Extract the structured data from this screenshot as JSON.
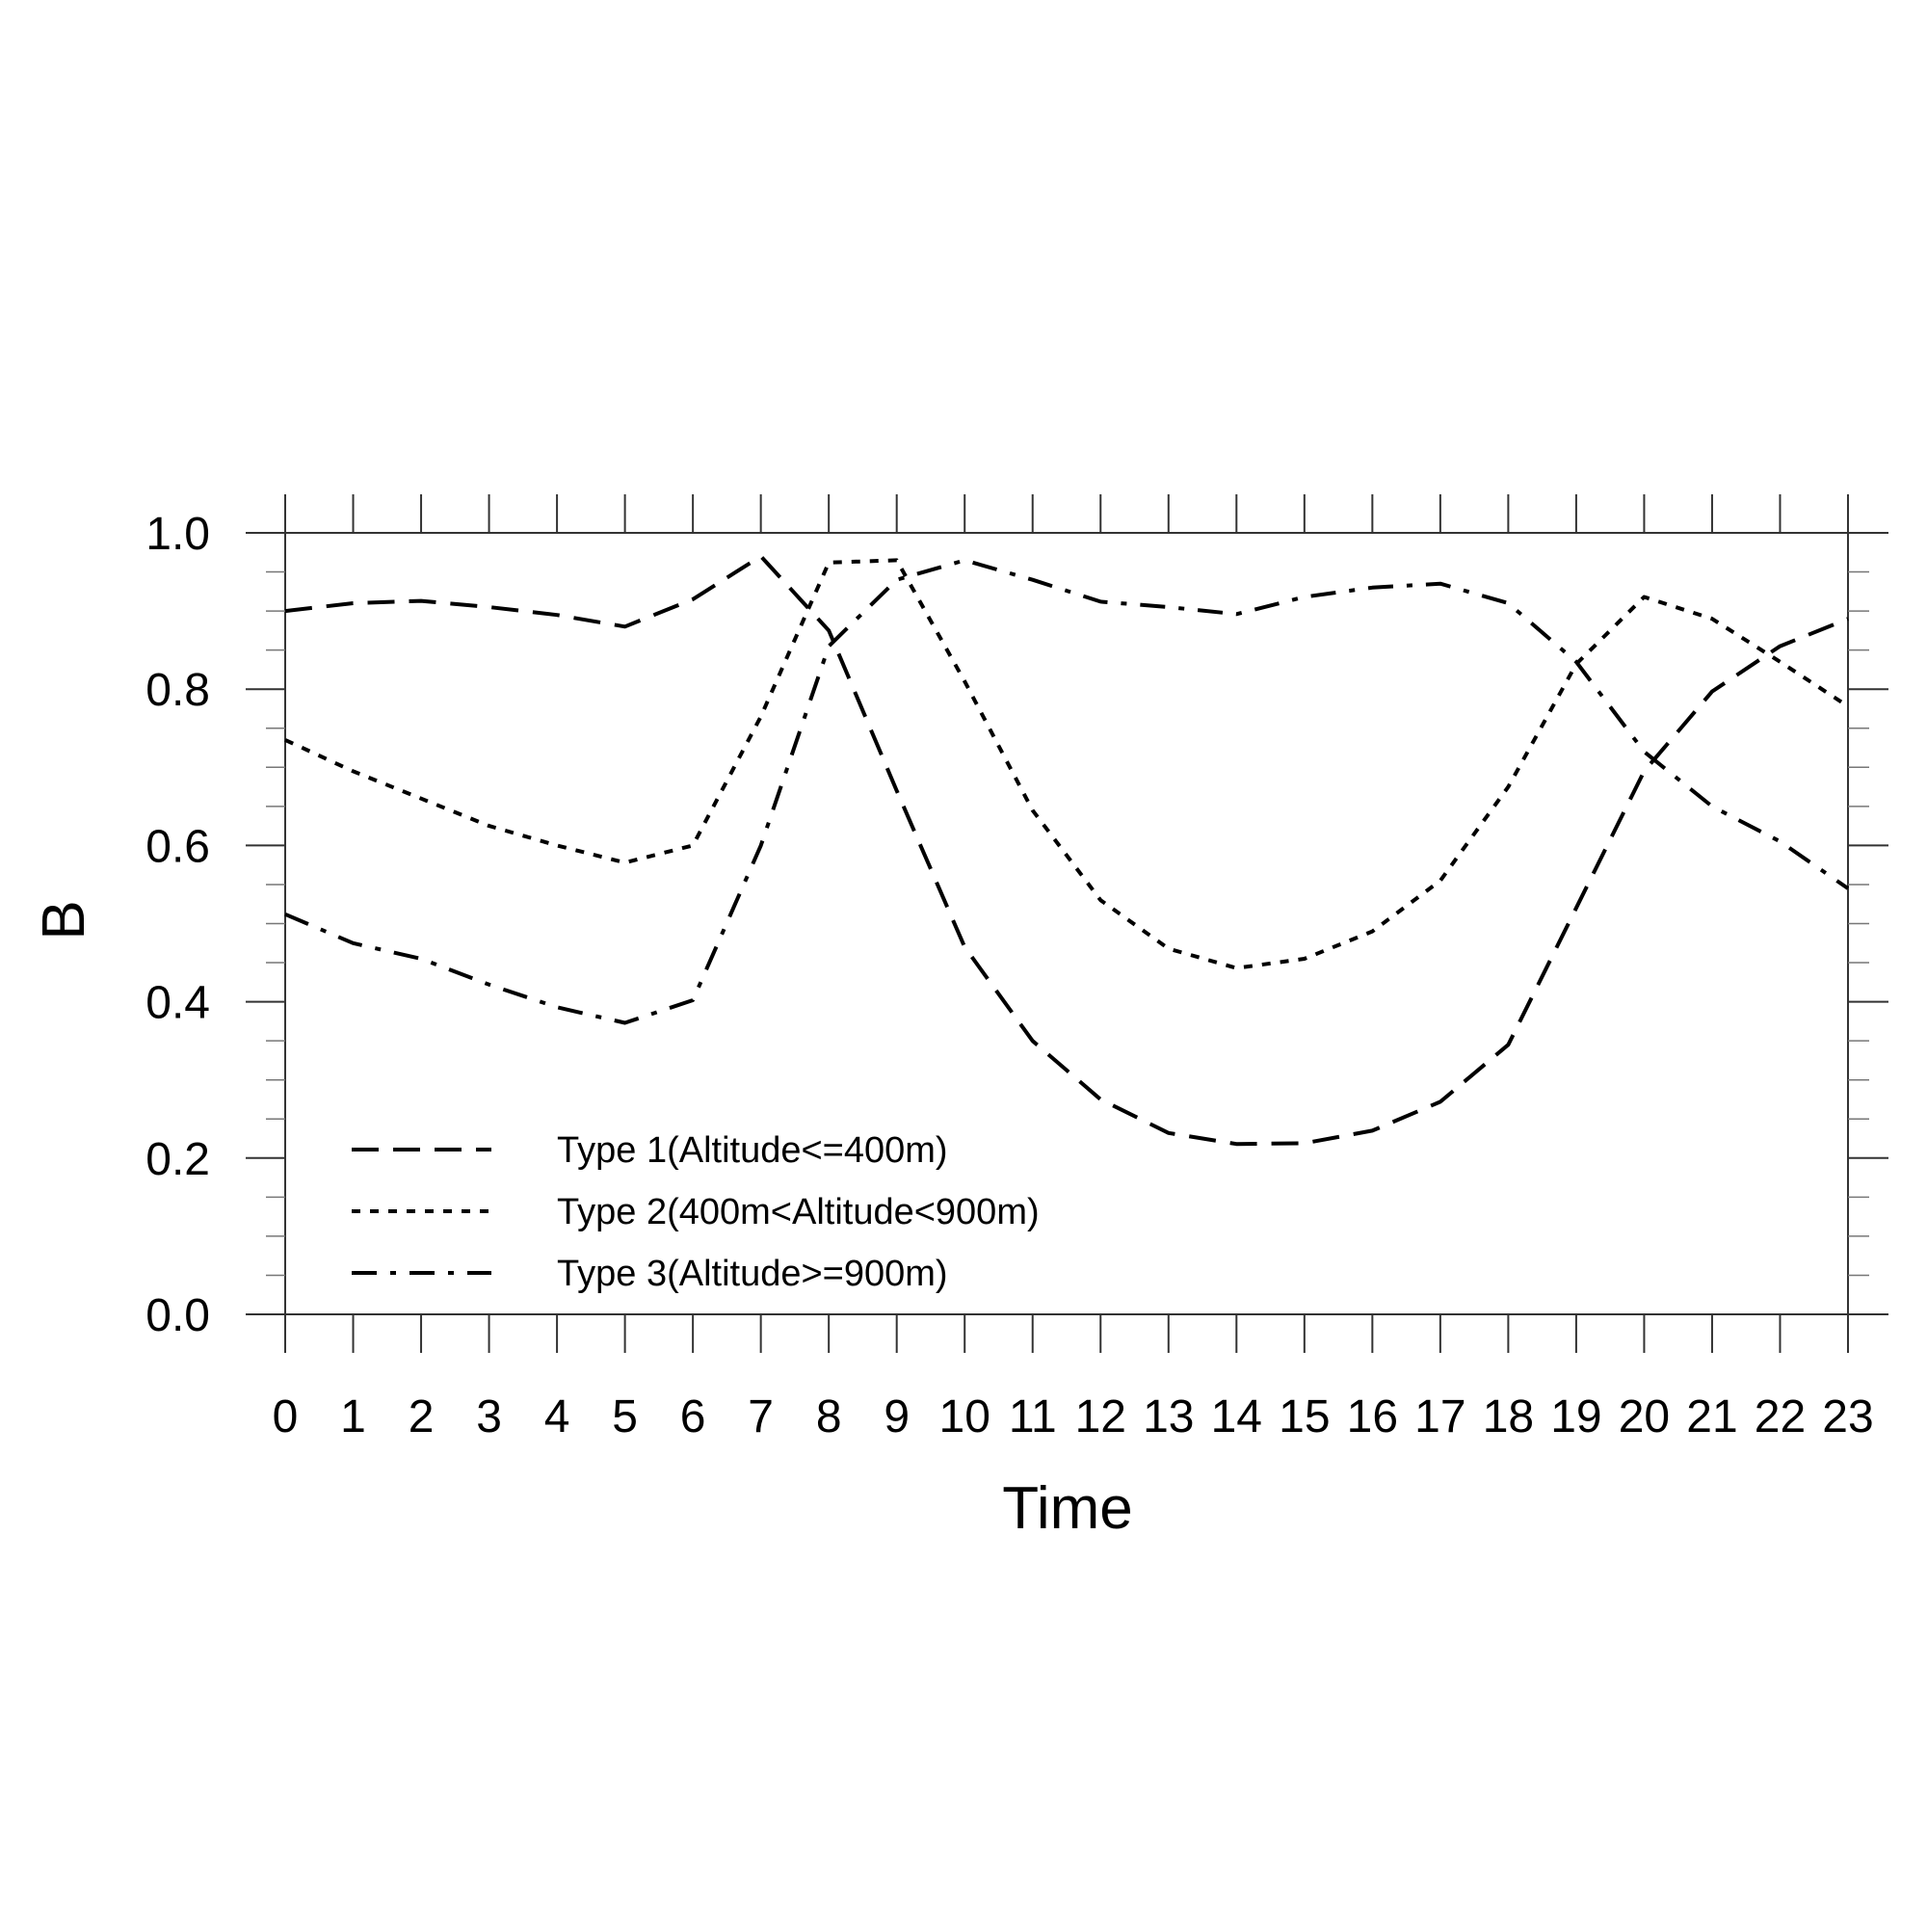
{
  "chart_data": {
    "type": "line",
    "xlabel": "Time",
    "ylabel": "B",
    "xlim": [
      0,
      23
    ],
    "ylim": [
      0,
      1
    ],
    "x": [
      0,
      1,
      2,
      3,
      4,
      5,
      6,
      7,
      8,
      9,
      10,
      11,
      12,
      13,
      14,
      15,
      16,
      17,
      18,
      19,
      20,
      21,
      22,
      23
    ],
    "x_ticks": [
      "0",
      "1",
      "2",
      "3",
      "4",
      "5",
      "6",
      "7",
      "8",
      "9",
      "10",
      "11",
      "12",
      "13",
      "14",
      "15",
      "16",
      "17",
      "18",
      "19",
      "20",
      "21",
      "22",
      "23"
    ],
    "y_ticks": [
      "0.0",
      "0.2",
      "0.4",
      "0.6",
      "0.8",
      "1.0"
    ],
    "grid": false,
    "legend_position": "bottom-left",
    "series": [
      {
        "name": "Type 1(Altitude<=400m)",
        "style": "dashed",
        "values": [
          0.9,
          0.91,
          0.913,
          0.905,
          0.895,
          0.88,
          0.915,
          0.97,
          0.875,
          0.67,
          0.47,
          0.35,
          0.275,
          0.232,
          0.218,
          0.219,
          0.235,
          0.272,
          0.345,
          0.52,
          0.695,
          0.797,
          0.855,
          0.89
        ]
      },
      {
        "name": "Type 2(400m<Altitude<900m)",
        "style": "dotted",
        "values": [
          0.735,
          0.695,
          0.66,
          0.625,
          0.6,
          0.578,
          0.6,
          0.765,
          0.962,
          0.965,
          0.81,
          0.645,
          0.53,
          0.468,
          0.443,
          0.455,
          0.49,
          0.555,
          0.675,
          0.832,
          0.918,
          0.89,
          0.835,
          0.778
        ]
      },
      {
        "name": "Type 3(Altitude>=900m)",
        "style": "dash-dot",
        "values": [
          0.512,
          0.475,
          0.455,
          0.422,
          0.393,
          0.373,
          0.402,
          0.6,
          0.855,
          0.94,
          0.965,
          0.94,
          0.912,
          0.905,
          0.896,
          0.918,
          0.93,
          0.935,
          0.91,
          0.835,
          0.72,
          0.65,
          0.605,
          0.545
        ]
      }
    ]
  }
}
